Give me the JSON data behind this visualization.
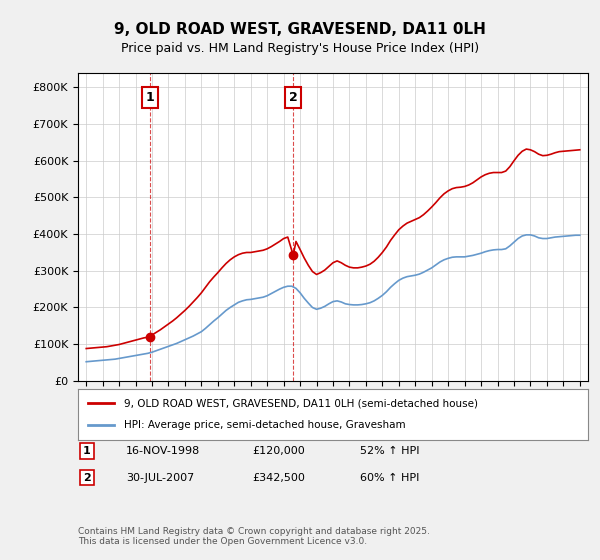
{
  "title": "9, OLD ROAD WEST, GRAVESEND, DA11 0LH",
  "subtitle": "Price paid vs. HM Land Registry's House Price Index (HPI)",
  "hpi_label": "HPI: Average price, semi-detached house, Gravesham",
  "property_label": "9, OLD ROAD WEST, GRAVESEND, DA11 0LH (semi-detached house)",
  "red_color": "#cc0000",
  "blue_color": "#6699cc",
  "background_color": "#f0f0f0",
  "plot_bg_color": "#ffffff",
  "ylim": [
    0,
    840000
  ],
  "yticks": [
    0,
    100000,
    200000,
    300000,
    400000,
    500000,
    600000,
    700000,
    800000
  ],
  "xlim_start": 1994.5,
  "xlim_end": 2025.5,
  "purchase1_year": 1998.88,
  "purchase1_price": 120000,
  "purchase1_label": "1",
  "purchase2_year": 2007.58,
  "purchase2_price": 342500,
  "purchase2_label": "2",
  "footnote": "Contains HM Land Registry data © Crown copyright and database right 2025.\nThis data is licensed under the Open Government Licence v3.0.",
  "table_row1": "1    16-NOV-1998         £120,000         52% ↑ HPI",
  "table_row2": "2    30-JUL-2007         £342,500         60% ↑ HPI",
  "hpi_data_years": [
    1995,
    1995.25,
    1995.5,
    1995.75,
    1996,
    1996.25,
    1996.5,
    1996.75,
    1997,
    1997.25,
    1997.5,
    1997.75,
    1998,
    1998.25,
    1998.5,
    1998.75,
    1999,
    1999.25,
    1999.5,
    1999.75,
    2000,
    2000.25,
    2000.5,
    2000.75,
    2001,
    2001.25,
    2001.5,
    2001.75,
    2002,
    2002.25,
    2002.5,
    2002.75,
    2003,
    2003.25,
    2003.5,
    2003.75,
    2004,
    2004.25,
    2004.5,
    2004.75,
    2005,
    2005.25,
    2005.5,
    2005.75,
    2006,
    2006.25,
    2006.5,
    2006.75,
    2007,
    2007.25,
    2007.5,
    2007.75,
    2008,
    2008.25,
    2008.5,
    2008.75,
    2009,
    2009.25,
    2009.5,
    2009.75,
    2010,
    2010.25,
    2010.5,
    2010.75,
    2011,
    2011.25,
    2011.5,
    2011.75,
    2012,
    2012.25,
    2012.5,
    2012.75,
    2013,
    2013.25,
    2013.5,
    2013.75,
    2014,
    2014.25,
    2014.5,
    2014.75,
    2015,
    2015.25,
    2015.5,
    2015.75,
    2016,
    2016.25,
    2016.5,
    2016.75,
    2017,
    2017.25,
    2017.5,
    2017.75,
    2018,
    2018.25,
    2018.5,
    2018.75,
    2019,
    2019.25,
    2019.5,
    2019.75,
    2020,
    2020.25,
    2020.5,
    2020.75,
    2021,
    2021.25,
    2021.5,
    2021.75,
    2022,
    2022.25,
    2022.5,
    2022.75,
    2023,
    2023.25,
    2023.5,
    2023.75,
    2024,
    2024.25,
    2024.5,
    2024.75,
    2025
  ],
  "hpi_data_values": [
    52000,
    53000,
    54000,
    55000,
    56000,
    57000,
    58000,
    59000,
    61000,
    63000,
    65000,
    67000,
    69000,
    71000,
    73000,
    75000,
    78000,
    82000,
    86000,
    90000,
    94000,
    98000,
    102000,
    107000,
    112000,
    117000,
    122000,
    128000,
    134000,
    143000,
    153000,
    163000,
    172000,
    182000,
    192000,
    200000,
    207000,
    214000,
    218000,
    221000,
    222000,
    224000,
    226000,
    228000,
    232000,
    238000,
    244000,
    250000,
    255000,
    258000,
    258000,
    252000,
    240000,
    225000,
    212000,
    200000,
    195000,
    198000,
    203000,
    210000,
    216000,
    218000,
    215000,
    210000,
    208000,
    207000,
    207000,
    208000,
    210000,
    213000,
    218000,
    225000,
    233000,
    243000,
    255000,
    265000,
    274000,
    280000,
    284000,
    286000,
    288000,
    291000,
    296000,
    302000,
    308000,
    316000,
    324000,
    330000,
    334000,
    337000,
    338000,
    338000,
    338000,
    340000,
    342000,
    345000,
    348000,
    352000,
    355000,
    357000,
    358000,
    358000,
    360000,
    368000,
    378000,
    388000,
    395000,
    398000,
    398000,
    395000,
    390000,
    388000,
    388000,
    390000,
    392000,
    393000,
    394000,
    395000,
    396000,
    397000,
    397000
  ],
  "property_data_years": [
    1995,
    1995.25,
    1995.5,
    1995.75,
    1996,
    1996.25,
    1996.5,
    1996.75,
    1997,
    1997.25,
    1997.5,
    1997.75,
    1998,
    1998.25,
    1998.5,
    1998.88,
    1999,
    1999.25,
    1999.5,
    1999.75,
    2000,
    2000.25,
    2000.5,
    2000.75,
    2001,
    2001.25,
    2001.5,
    2001.75,
    2002,
    2002.25,
    2002.5,
    2002.75,
    2003,
    2003.25,
    2003.5,
    2003.75,
    2004,
    2004.25,
    2004.5,
    2004.75,
    2005,
    2005.25,
    2005.5,
    2005.75,
    2006,
    2006.25,
    2006.5,
    2006.75,
    2007,
    2007.25,
    2007.58,
    2007.75,
    2008,
    2008.25,
    2008.5,
    2008.75,
    2009,
    2009.25,
    2009.5,
    2009.75,
    2010,
    2010.25,
    2010.5,
    2010.75,
    2011,
    2011.25,
    2011.5,
    2011.75,
    2012,
    2012.25,
    2012.5,
    2012.75,
    2013,
    2013.25,
    2013.5,
    2013.75,
    2014,
    2014.25,
    2014.5,
    2014.75,
    2015,
    2015.25,
    2015.5,
    2015.75,
    2016,
    2016.25,
    2016.5,
    2016.75,
    2017,
    2017.25,
    2017.5,
    2017.75,
    2018,
    2018.25,
    2018.5,
    2018.75,
    2019,
    2019.25,
    2019.5,
    2019.75,
    2020,
    2020.25,
    2020.5,
    2020.75,
    2021,
    2021.25,
    2021.5,
    2021.75,
    2022,
    2022.25,
    2022.5,
    2022.75,
    2023,
    2023.25,
    2023.5,
    2023.75,
    2024,
    2024.25,
    2024.5,
    2024.75,
    2025
  ],
  "property_data_values": [
    88000,
    89000,
    90000,
    91000,
    92000,
    93000,
    95000,
    97000,
    99000,
    102000,
    105000,
    108000,
    111000,
    114000,
    117000,
    120000,
    125000,
    132000,
    139000,
    147000,
    155000,
    163000,
    172000,
    182000,
    192000,
    203000,
    215000,
    227000,
    240000,
    255000,
    270000,
    283000,
    295000,
    308000,
    320000,
    330000,
    338000,
    344000,
    348000,
    350000,
    350000,
    352000,
    354000,
    356000,
    360000,
    366000,
    373000,
    380000,
    388000,
    392000,
    342500,
    380000,
    358000,
    335000,
    315000,
    298000,
    290000,
    295000,
    302000,
    312000,
    322000,
    327000,
    322000,
    315000,
    310000,
    308000,
    308000,
    310000,
    313000,
    318000,
    326000,
    337000,
    350000,
    365000,
    383000,
    398000,
    412000,
    422000,
    430000,
    435000,
    440000,
    445000,
    453000,
    463000,
    474000,
    486000,
    499000,
    510000,
    518000,
    524000,
    527000,
    528000,
    530000,
    534000,
    540000,
    548000,
    556000,
    562000,
    566000,
    568000,
    568000,
    568000,
    572000,
    584000,
    600000,
    615000,
    626000,
    632000,
    630000,
    625000,
    618000,
    614000,
    615000,
    618000,
    622000,
    625000,
    626000,
    627000,
    628000,
    629000,
    630000
  ]
}
